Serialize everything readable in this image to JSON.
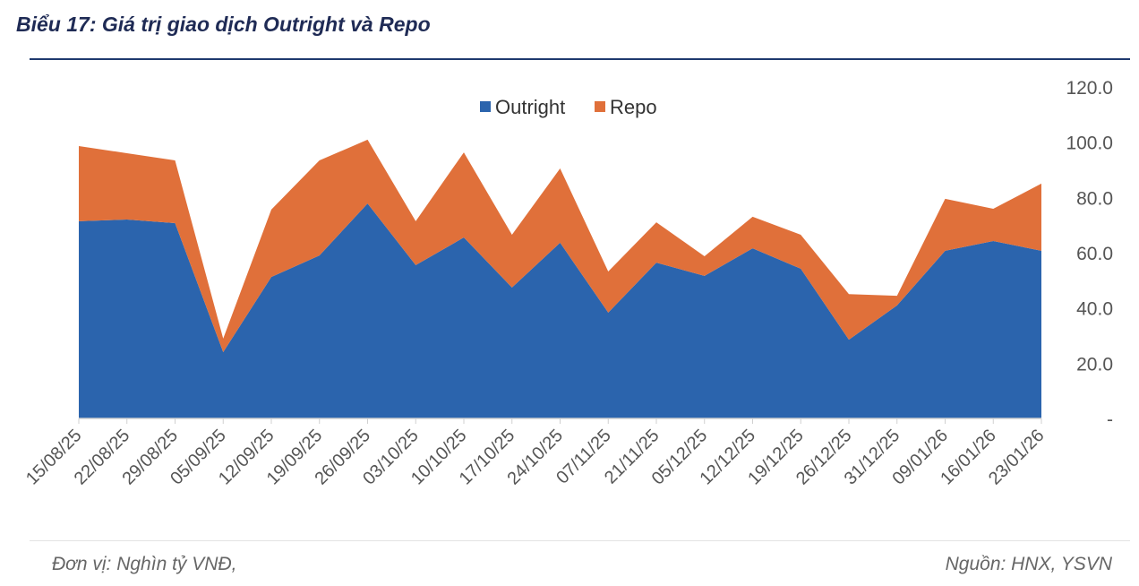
{
  "title": "Biểu 17: Giá trị giao dịch Outright và Repo",
  "footer": {
    "unit": "Đơn vị: Nghìn tỷ VNĐ,",
    "source": "Nguồn: HNX, YSVN"
  },
  "chart_data": {
    "type": "area",
    "stacked": true,
    "categories": [
      "15/08/25",
      "22/08/25",
      "29/08/25",
      "05/09/25",
      "12/09/25",
      "19/09/25",
      "26/09/25",
      "03/10/25",
      "10/10/25",
      "17/10/25",
      "24/10/25",
      "07/11/25",
      "21/11/25",
      "05/12/25",
      "12/12/25",
      "19/12/25",
      "26/12/25",
      "31/12/25",
      "09/01/26",
      "16/01/26",
      "23/01/26"
    ],
    "series": [
      {
        "name": "Outright",
        "color": "#2b64ad",
        "values": [
          71.4,
          72.0,
          70.7,
          24.0,
          51.2,
          59.0,
          77.8,
          55.5,
          65.5,
          47.4,
          63.6,
          38.3,
          56.4,
          51.6,
          61.6,
          54.2,
          28.5,
          40.9,
          60.7,
          64.2,
          60.7
        ]
      },
      {
        "name": "Repo",
        "color": "#e0703a",
        "values": [
          27.2,
          24.0,
          22.7,
          4.9,
          24.4,
          34.4,
          23.1,
          15.9,
          30.8,
          19.1,
          26.9,
          14.9,
          14.6,
          7.1,
          11.4,
          12.3,
          16.5,
          3.5,
          18.8,
          11.7,
          24.3
        ]
      }
    ],
    "ylim": [
      0,
      120
    ],
    "yticks": [
      "-",
      "20.0",
      "40.0",
      "60.0",
      "80.0",
      "100.0",
      "120.0"
    ],
    "yaxis_position": "right",
    "legend": "top-center",
    "grid": false
  }
}
